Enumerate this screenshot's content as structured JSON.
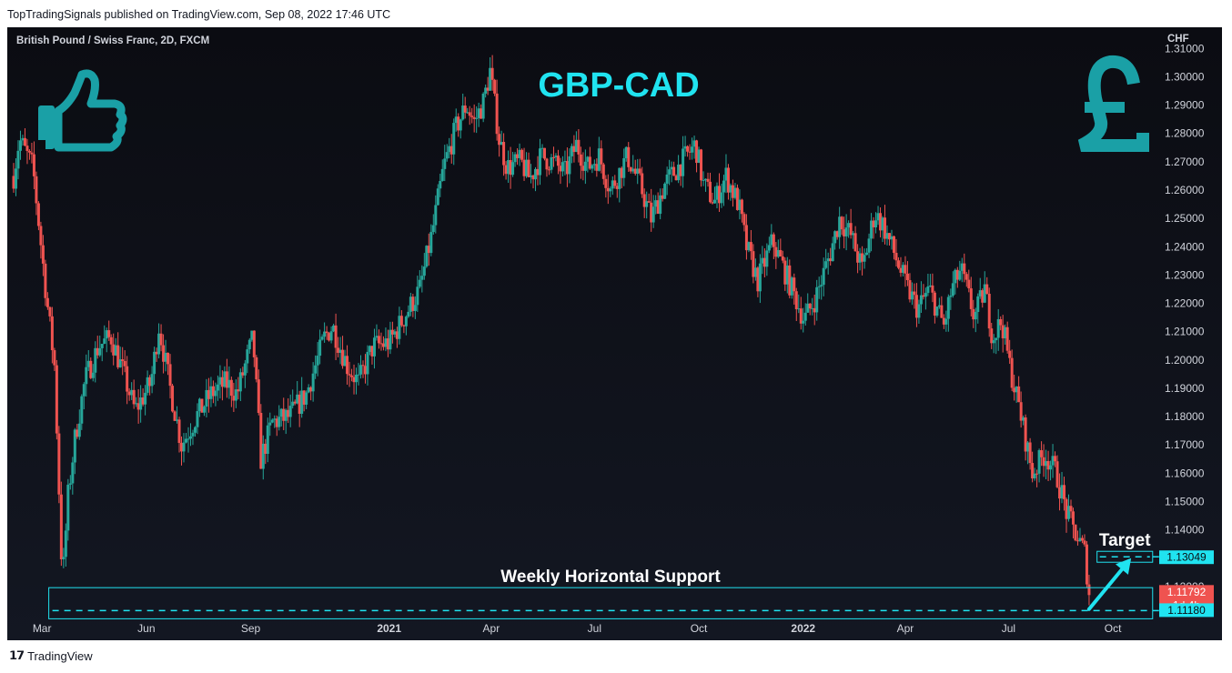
{
  "publisher_line": "TopTradingSignals published on TradingView.com, Sep 08, 2022 17:46 UTC",
  "footer": {
    "logo_glyph": "𝟭𝟳",
    "brand": "TradingView"
  },
  "chart_data": {
    "type": "candlestick",
    "symbol_title": "British Pound / Swiss Franc, 2D, FXCM",
    "headline": "GBP-CAD",
    "currency_label": "CHF",
    "y_ticks": [
      "1.31000",
      "1.30000",
      "1.29000",
      "1.28000",
      "1.27000",
      "1.26000",
      "1.25000",
      "1.24000",
      "1.23000",
      "1.22000",
      "1.21000",
      "1.20000",
      "1.19000",
      "1.18000",
      "1.17000",
      "1.16000",
      "1.15000",
      "1.14000",
      "1.13000",
      "1.12000"
    ],
    "ylim": [
      1.11,
      1.3175
    ],
    "x_ticks": [
      {
        "label": "Mar",
        "date": "2020-03-01",
        "bold": false
      },
      {
        "label": "Jun",
        "date": "2020-06-01",
        "bold": false
      },
      {
        "label": "Sep",
        "date": "2020-09-01",
        "bold": false
      },
      {
        "label": "2021",
        "date": "2021-01-01",
        "bold": true
      },
      {
        "label": "Apr",
        "date": "2021-04-01",
        "bold": false
      },
      {
        "label": "Jul",
        "date": "2021-07-01",
        "bold": false
      },
      {
        "label": "Oct",
        "date": "2021-10-01",
        "bold": false
      },
      {
        "label": "2022",
        "date": "2022-01-01",
        "bold": true
      },
      {
        "label": "Apr",
        "date": "2022-04-01",
        "bold": false
      },
      {
        "label": "Jul",
        "date": "2022-07-01",
        "bold": false
      },
      {
        "label": "Oct",
        "date": "2022-10-01",
        "bold": false
      }
    ],
    "xlim": [
      "2020-02-01",
      "2022-11-10"
    ],
    "price_path": [
      [
        "2020-02-05",
        1.265
      ],
      [
        "2020-02-10",
        1.278
      ],
      [
        "2020-02-22",
        1.268
      ],
      [
        "2020-03-05",
        1.222
      ],
      [
        "2020-03-12",
        1.198
      ],
      [
        "2020-03-19",
        1.121
      ],
      [
        "2020-03-24",
        1.152
      ],
      [
        "2020-03-30",
        1.172
      ],
      [
        "2020-04-08",
        1.193
      ],
      [
        "2020-04-20",
        1.205
      ],
      [
        "2020-05-01",
        1.208
      ],
      [
        "2020-05-12",
        1.195
      ],
      [
        "2020-05-22",
        1.182
      ],
      [
        "2020-06-05",
        1.192
      ],
      [
        "2020-06-12",
        1.212
      ],
      [
        "2020-06-22",
        1.19
      ],
      [
        "2020-07-02",
        1.17
      ],
      [
        "2020-07-15",
        1.18
      ],
      [
        "2020-07-28",
        1.188
      ],
      [
        "2020-08-10",
        1.192
      ],
      [
        "2020-08-20",
        1.188
      ],
      [
        "2020-09-03",
        1.208
      ],
      [
        "2020-09-10",
        1.165
      ],
      [
        "2020-09-20",
        1.178
      ],
      [
        "2020-10-05",
        1.18
      ],
      [
        "2020-10-20",
        1.188
      ],
      [
        "2020-11-05",
        1.208
      ],
      [
        "2020-11-12",
        1.212
      ],
      [
        "2020-11-25",
        1.198
      ],
      [
        "2020-12-05",
        1.192
      ],
      [
        "2020-12-18",
        1.205
      ],
      [
        "2021-01-01",
        1.206
      ],
      [
        "2021-01-14",
        1.215
      ],
      [
        "2021-01-28",
        1.225
      ],
      [
        "2021-02-08",
        1.245
      ],
      [
        "2021-02-18",
        1.268
      ],
      [
        "2021-03-01",
        1.282
      ],
      [
        "2021-03-10",
        1.29
      ],
      [
        "2021-03-17",
        1.284
      ],
      [
        "2021-03-25",
        1.291
      ],
      [
        "2021-03-31",
        1.302
      ],
      [
        "2021-04-08",
        1.278
      ],
      [
        "2021-04-15",
        1.268
      ],
      [
        "2021-04-27",
        1.27
      ],
      [
        "2021-05-05",
        1.264
      ],
      [
        "2021-05-15",
        1.272
      ],
      [
        "2021-05-25",
        1.27
      ],
      [
        "2021-06-05",
        1.266
      ],
      [
        "2021-06-15",
        1.276
      ],
      [
        "2021-06-25",
        1.268
      ],
      [
        "2021-07-05",
        1.272
      ],
      [
        "2021-07-15",
        1.26
      ],
      [
        "2021-07-30",
        1.272
      ],
      [
        "2021-08-10",
        1.262
      ],
      [
        "2021-08-20",
        1.25
      ],
      [
        "2021-09-01",
        1.262
      ],
      [
        "2021-09-20",
        1.272
      ],
      [
        "2021-09-28",
        1.276
      ],
      [
        "2021-10-05",
        1.262
      ],
      [
        "2021-10-15",
        1.256
      ],
      [
        "2021-10-25",
        1.265
      ],
      [
        "2021-11-05",
        1.255
      ],
      [
        "2021-11-12",
        1.24
      ],
      [
        "2021-11-22",
        1.228
      ],
      [
        "2021-12-05",
        1.242
      ],
      [
        "2021-12-15",
        1.232
      ],
      [
        "2021-12-25",
        1.222
      ],
      [
        "2022-01-02",
        1.214
      ],
      [
        "2022-01-12",
        1.222
      ],
      [
        "2022-01-25",
        1.238
      ],
      [
        "2022-02-02",
        1.25
      ],
      [
        "2022-02-12",
        1.244
      ],
      [
        "2022-02-22",
        1.232
      ],
      [
        "2022-03-05",
        1.252
      ],
      [
        "2022-03-12",
        1.248
      ],
      [
        "2022-03-20",
        1.24
      ],
      [
        "2022-04-02",
        1.226
      ],
      [
        "2022-04-12",
        1.218
      ],
      [
        "2022-04-22",
        1.225
      ],
      [
        "2022-05-05",
        1.212
      ],
      [
        "2022-05-12",
        1.225
      ],
      [
        "2022-05-20",
        1.232
      ],
      [
        "2022-06-01",
        1.215
      ],
      [
        "2022-06-10",
        1.225
      ],
      [
        "2022-06-17",
        1.208
      ],
      [
        "2022-06-25",
        1.214
      ],
      [
        "2022-07-02",
        1.198
      ],
      [
        "2022-07-12",
        1.18
      ],
      [
        "2022-07-22",
        1.16
      ],
      [
        "2022-08-02",
        1.167
      ],
      [
        "2022-08-12",
        1.16
      ],
      [
        "2022-08-22",
        1.145
      ],
      [
        "2022-08-31",
        1.137
      ],
      [
        "2022-09-06",
        1.132
      ],
      [
        "2022-09-10",
        1.118
      ]
    ],
    "support_zone": {
      "label": "Weekly Horizontal Support",
      "top": 1.1183,
      "bottom": 1.1118,
      "line": 1.1118,
      "start": "2020-03-15",
      "end": "2022-11-05"
    },
    "target": {
      "label": "Target",
      "price": 1.13049,
      "start": "2022-09-17",
      "end": "2022-11-05"
    },
    "arrow": {
      "from": [
        "2022-09-10",
        1.112
      ],
      "to": [
        "2022-10-15",
        1.129
      ]
    },
    "price_tags": [
      {
        "text": "1.13049",
        "price": 1.13049,
        "bg": "#20e3f0",
        "fg": "#0b0c12"
      },
      {
        "text": "1.11792",
        "sub": "1d 4h",
        "price": 1.11792,
        "bg": "#ef5350",
        "fg": "#ffffff"
      },
      {
        "text": "1.11180",
        "price": 1.1118,
        "bg": "#20e3f0",
        "fg": "#0b0c12"
      }
    ],
    "colors": {
      "up": "#26a69a",
      "down": "#ef5350",
      "accent": "#20e3f0",
      "icons": "#1aa0a6",
      "background": "#0b0c12"
    },
    "icons": [
      "thumbs-up-icon",
      "pound-sign-icon"
    ]
  }
}
